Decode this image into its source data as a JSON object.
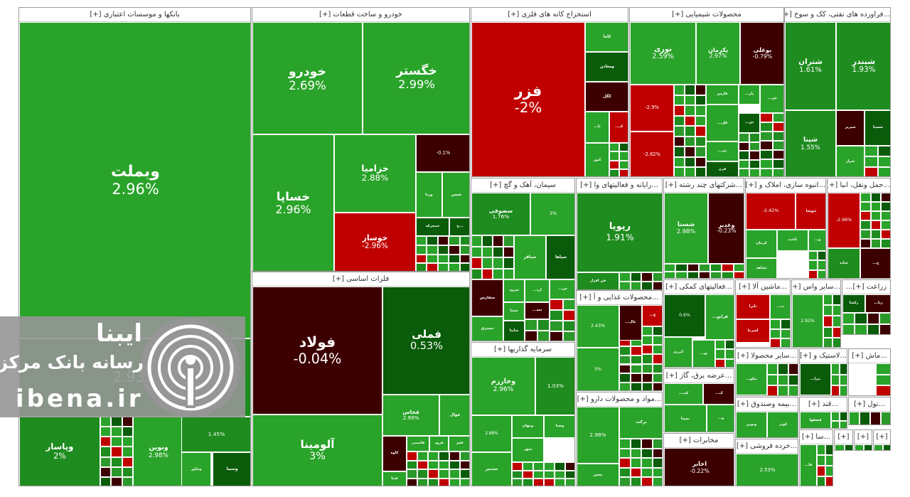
{
  "colors": {
    "strong_green": "#0a5c0a",
    "green": "#1e8c1e",
    "light_green": "#29a329",
    "red": "#c00000",
    "dark_red": "#3c0000",
    "border": "#ffffff"
  },
  "sectors": [
    {
      "title": "بانکها و موسسات اعتباری [+]",
      "tiles": [
        {
          "symbol": "وبملت",
          "change": "2.96%",
          "color": "light_green"
        },
        {
          "symbol": "وپاسار",
          "change": "2%",
          "color": "green"
        },
        {
          "symbol": "ونوین",
          "change": "2.98%",
          "color": "light_green"
        },
        {
          "symbol": "وخاور",
          "change": "",
          "color": "light_green"
        },
        {
          "symbol": "وسینا",
          "change": "",
          "color": "strong_green"
        },
        {
          "symbol": "",
          "change": "2.93%",
          "color": "green"
        },
        {
          "symbol": "",
          "change": "1.45%",
          "color": "green"
        }
      ]
    },
    {
      "title": "خودرو و ساخت قطعات [+]",
      "tiles": [
        {
          "symbol": "خودرو",
          "change": "2.69%",
          "color": "light_green"
        },
        {
          "symbol": "خگستر",
          "change": "2.99%",
          "color": "light_green"
        },
        {
          "symbol": "خساپا",
          "change": "2.96%",
          "color": "light_green"
        },
        {
          "symbol": "خزامیا",
          "change": "2.88%",
          "color": "light_green"
        },
        {
          "symbol": "خوساز",
          "change": "-2.96%",
          "color": "red"
        },
        {
          "symbol": "",
          "change": "-0.1%",
          "color": "dark_red"
        },
        {
          "symbol": "ورنا",
          "change": "",
          "color": "light_green"
        },
        {
          "symbol": "خیمن",
          "change": "",
          "color": "light_green"
        },
        {
          "symbol": "خمحرکه",
          "change": "",
          "color": "strong_green"
        },
        {
          "symbol": "خ...",
          "change": "",
          "color": "strong_green"
        }
      ]
    },
    {
      "title": "فلزات اساسی [+]",
      "tiles": [
        {
          "symbol": "فولاد",
          "change": "-0.04%",
          "color": "dark_red"
        },
        {
          "symbol": "فملی",
          "change": "0.53%",
          "color": "strong_green"
        },
        {
          "symbol": "آلومینا",
          "change": "3%",
          "color": "light_green"
        },
        {
          "symbol": "فخاس",
          "change": "2.99%",
          "color": "light_green"
        },
        {
          "symbol": "فوال",
          "change": "",
          "color": "light_green"
        },
        {
          "symbol": "کاوه",
          "change": "",
          "color": "dark_red"
        },
        {
          "symbol": "فاسمی",
          "change": "",
          "color": "light_green"
        },
        {
          "symbol": "فرود",
          "change": "",
          "color": "light_green"
        },
        {
          "symbol": "فجر",
          "change": "",
          "color": "light_green"
        },
        {
          "symbol": "فیتا",
          "change": "",
          "color": "light_green"
        }
      ]
    },
    {
      "title": "استخراج کانه های فلزی [+]",
      "tiles": [
        {
          "symbol": "فزر",
          "change": "-2%",
          "color": "red"
        },
        {
          "symbol": "کاما",
          "change": "",
          "color": "light_green"
        },
        {
          "symbol": "ومعادن",
          "change": "",
          "color": "strong_green"
        },
        {
          "symbol": "کگل",
          "change": "",
          "color": "dark_red"
        },
        {
          "symbol": "...تا",
          "change": "",
          "color": "light_green"
        },
        {
          "symbol": "...ک",
          "change": "",
          "color": "red"
        },
        {
          "symbol": "کتور",
          "change": "",
          "color": "light_green"
        }
      ]
    },
    {
      "title": "محصولات شیمیایی [+]",
      "tiles": [
        {
          "symbol": "نوری",
          "change": "2.59%",
          "color": "light_green"
        },
        {
          "symbol": "پکرمان",
          "change": "2.97%",
          "color": "light_green"
        },
        {
          "symbol": "بوعلی",
          "change": "-0.79%",
          "color": "dark_red"
        },
        {
          "symbol": "",
          "change": "-2.9%",
          "color": "red"
        },
        {
          "symbol": "فارس",
          "change": "",
          "color": "light_green"
        },
        {
          "symbol": "...پار",
          "change": "",
          "color": "light_green"
        },
        {
          "symbol": "...ش",
          "change": "",
          "color": "light_green"
        },
        {
          "symbol": "...فل",
          "change": "",
          "color": "light_green"
        },
        {
          "symbol": "...ش",
          "change": "",
          "color": "strong_green"
        },
        {
          "symbol": "",
          "change": "-2.82%",
          "color": "red"
        },
        {
          "symbol": "...پتر",
          "change": "",
          "color": "light_green"
        },
        {
          "symbol": "قرن",
          "change": "",
          "color": "strong_green"
        }
      ]
    },
    {
      "title": "...فراورده های نفتی، کک و سوخ [+]",
      "tiles": [
        {
          "symbol": "شتران",
          "change": "1.61%",
          "color": "green"
        },
        {
          "symbol": "شبندر",
          "change": "1.93%",
          "color": "green"
        },
        {
          "symbol": "شپنا",
          "change": "1.55%",
          "color": "green"
        },
        {
          "symbol": "شبریز",
          "change": "",
          "color": "dark_red"
        },
        {
          "symbol": "شسپا",
          "change": "",
          "color": "strong_green"
        },
        {
          "symbol": "شراز",
          "change": "",
          "color": "light_green"
        }
      ]
    },
    {
      "title": "سیمان، آهک و گچ [+]",
      "tiles": [
        {
          "symbol": "سصوفی",
          "change": "1.76%",
          "color": "green"
        },
        {
          "symbol": "",
          "change": "3%",
          "color": "light_green"
        },
        {
          "symbol": "سباقر",
          "change": "",
          "color": "light_green"
        },
        {
          "symbol": "سپاها",
          "change": "",
          "color": "strong_green"
        },
        {
          "symbol": "سفارس",
          "change": "",
          "color": "dark_red"
        },
        {
          "symbol": "سرود",
          "change": "",
          "color": "light_green"
        },
        {
          "symbol": "...ارد",
          "change": "",
          "color": "light_green"
        },
        {
          "symbol": "...س",
          "change": "",
          "color": "light_green"
        },
        {
          "symbol": "سیتا",
          "change": "",
          "color": "light_green"
        },
        {
          "symbol": "...سه",
          "change": "",
          "color": "dark_red"
        },
        {
          "symbol": "سشرق",
          "change": "",
          "color": "light_green"
        },
        {
          "symbol": "ساینا",
          "change": "",
          "color": "strong_green"
        }
      ]
    },
    {
      "title": "...رایانه و فعالیتهای وا [+]",
      "tiles": [
        {
          "symbol": "رپویا",
          "change": "1.91%",
          "color": "green"
        },
        {
          "symbol": "فن افزار",
          "change": "",
          "color": "green"
        }
      ]
    },
    {
      "title": "...شرکتهای چند رشته [+]",
      "tiles": [
        {
          "symbol": "شستا",
          "change": "2.98%",
          "color": "light_green"
        },
        {
          "symbol": "وغدیر",
          "change": "-0.23%",
          "color": "dark_red"
        }
      ]
    },
    {
      "title": "...انبوه سازی، املاک و [+]",
      "tiles": [
        {
          "symbol": "",
          "change": "-2.42%",
          "color": "red"
        },
        {
          "symbol": "ثنوسا",
          "change": "",
          "color": "red"
        },
        {
          "symbol": "کرمان",
          "change": "",
          "color": "light_green"
        },
        {
          "symbol": "ثاخت",
          "change": "",
          "color": "light_green"
        },
        {
          "symbol": "...و",
          "change": "",
          "color": "light_green"
        },
        {
          "symbol": "ثشاهد",
          "change": "",
          "color": "light_green"
        }
      ]
    },
    {
      "title": "...حمل ونقل، انبا [+]",
      "tiles": [
        {
          "symbol": "",
          "change": "-2.96%",
          "color": "red"
        },
        {
          "symbol": "حتاید",
          "change": "",
          "color": "green"
        },
        {
          "symbol": "...ح",
          "change": "",
          "color": "dark_red"
        }
      ]
    },
    {
      "title": "...محصولات غذایی و آ [+]",
      "tiles": [
        {
          "symbol": "",
          "change": "2.43%",
          "color": "light_green"
        },
        {
          "symbol": "...غال",
          "change": "",
          "color": "dark_red"
        },
        {
          "symbol": "...غ",
          "change": "",
          "color": "red"
        },
        {
          "symbol": "",
          "change": "3%",
          "color": "light_green"
        }
      ]
    },
    {
      "title": "سرمایه گذاریها [+]",
      "tiles": [
        {
          "symbol": "وخارزم",
          "change": "2.96%",
          "color": "light_green"
        },
        {
          "symbol": "",
          "change": "1.03%",
          "color": "green"
        },
        {
          "symbol": "",
          "change": "2.88%",
          "color": "light_green"
        },
        {
          "symbol": "ومهان",
          "change": "",
          "color": "light_green"
        },
        {
          "symbol": "وصنا",
          "change": "",
          "color": "light_green"
        },
        {
          "symbol": "شهر",
          "change": "",
          "color": "light_green"
        },
        {
          "symbol": "سدبیر",
          "change": "",
          "color": "light_green"
        }
      ]
    },
    {
      "title": "...مواد و محصولات دارو [+]",
      "tiles": [
        {
          "symbol": "",
          "change": "2.98%",
          "color": "light_green"
        },
        {
          "symbol": "برکت",
          "change": "",
          "color": "light_green"
        },
        {
          "symbol": "پخش",
          "change": "",
          "color": "light_green"
        }
      ]
    },
    {
      "title": "...فعالیتهای کمکی [+]",
      "tiles": [
        {
          "symbol": "",
          "change": "0.6%",
          "color": "strong_green"
        },
        {
          "symbol": "...فرابو",
          "change": "",
          "color": "light_green"
        },
        {
          "symbol": "اترزی",
          "change": "",
          "color": "light_green"
        },
        {
          "symbol": "...بو",
          "change": "",
          "color": "light_green"
        }
      ]
    },
    {
      "title": "...ماشین آلا [+]",
      "tiles": [
        {
          "symbol": "تایرا",
          "change": "",
          "color": "red"
        },
        {
          "symbol": "...ت",
          "change": "",
          "color": "light_green"
        },
        {
          "symbol": "لسرما",
          "change": "",
          "color": "red"
        }
      ]
    },
    {
      "title": "...سایر واس [+]",
      "tiles": [
        {
          "symbol": "",
          "change": "2.92%",
          "color": "light_green"
        }
      ]
    },
    {
      "title": "زراعت [+]...",
      "tiles": [
        {
          "symbol": "زکشا",
          "change": "",
          "color": "strong_green"
        },
        {
          "symbol": "...زیا",
          "change": "",
          "color": "dark_red"
        }
      ]
    },
    {
      "title": "...عرضه برق، گاز [+]",
      "tiles": [
        {
          "symbol": "...کپ",
          "change": "",
          "color": "light_green"
        },
        {
          "symbol": "...ک",
          "change": "",
          "color": "dark_red"
        },
        {
          "symbol": "بمپنا",
          "change": "",
          "color": "light_green"
        },
        {
          "symbol": "...و",
          "change": "",
          "color": "light_green"
        }
      ]
    },
    {
      "title": "...سایر محصولا [+]",
      "tiles": [
        {
          "symbol": "...بیکو",
          "change": "",
          "color": "light_green"
        },
        {
          "symbol": "بکرمان",
          "change": "",
          "color": "strong_green"
        }
      ]
    },
    {
      "title": "...لاستیک و [+]",
      "tiles": [
        {
          "symbol": "...بترا",
          "change": "",
          "color": "strong_green"
        }
      ]
    },
    {
      "title": "...ماش [+]",
      "tiles": []
    },
    {
      "title": "...بیمه وصندوق [+]",
      "tiles": [
        {
          "symbol": "وتوین",
          "change": "",
          "color": "light_green"
        },
        {
          "symbol": "کوثر",
          "change": "",
          "color": "light_green"
        }
      ]
    },
    {
      "title": "...قند [+]",
      "tiles": [
        {
          "symbol": "قصفها",
          "change": "",
          "color": "light_green"
        }
      ]
    },
    {
      "title": "...تول [+]",
      "tiles": []
    },
    {
      "title": "مخابرات [+]",
      "tiles": [
        {
          "symbol": "اخابر",
          "change": "-0.22%",
          "color": "dark_red"
        }
      ]
    },
    {
      "title": "...خرده فروشی [+]",
      "tiles": [
        {
          "symbol": "",
          "change": "2.53%",
          "color": "light_green"
        }
      ]
    },
    {
      "title": "...سا [+]",
      "tiles": [
        {
          "symbol": "...فا",
          "change": "",
          "color": "light_green"
        }
      ]
    },
    {
      "title": "[+]",
      "tiles": []
    },
    {
      "title": "[+]",
      "tiles": []
    },
    {
      "title": "[+]",
      "tiles": []
    },
    {
      "title": "[+]",
      "tiles": []
    }
  ],
  "watermark": {
    "line1": "ایبنا",
    "line2": "رسانه بانک مرکزی",
    "line3": "ibena.ir"
  }
}
